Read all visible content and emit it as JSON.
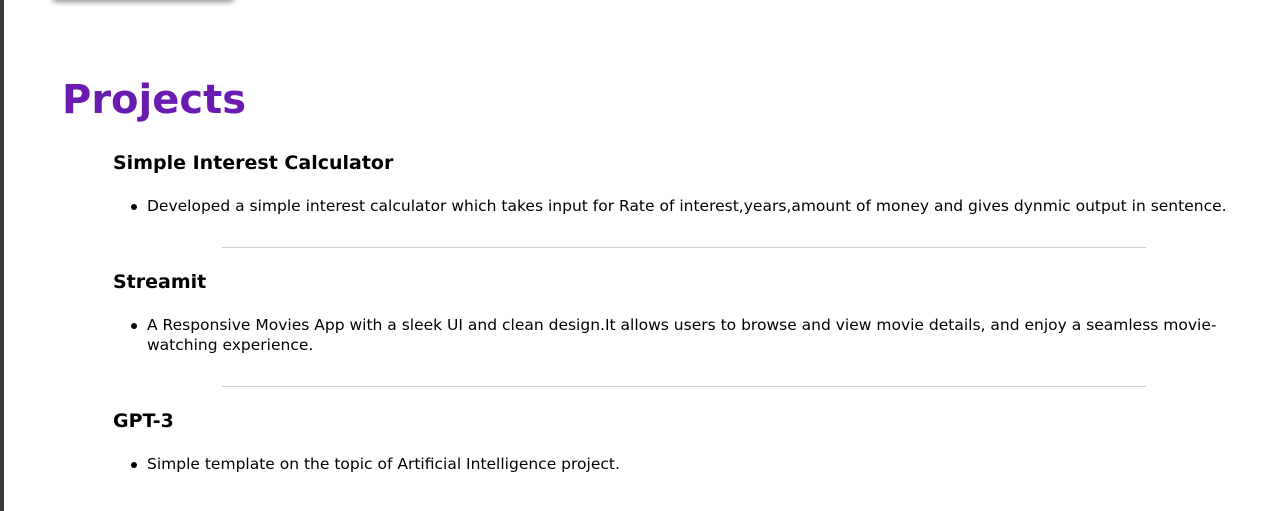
{
  "section": {
    "title": "Projects"
  },
  "projects": [
    {
      "title": "Simple Interest Calculator",
      "description": "Developed a simple interest calculator which takes input for Rate of interest,years,amount of money and gives dynmic output in sentence."
    },
    {
      "title": "Streamit",
      "description": "A Responsive Movies App with a sleek UI and clean design.It allows users to browse and view movie details, and enjoy a seamless movie-watching experience."
    },
    {
      "title": "GPT-3",
      "description": "Simple template on the topic of Artificial Intelligence project."
    }
  ],
  "colors": {
    "section_title": "#6a1bb0",
    "divider": "#cfcfcf"
  }
}
